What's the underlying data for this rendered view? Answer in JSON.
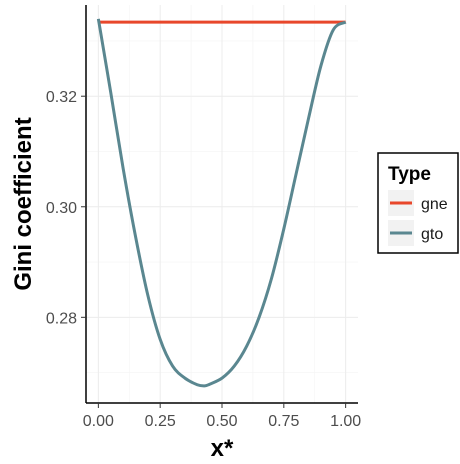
{
  "chart_data": {
    "type": "line",
    "title": "",
    "xlabel": "x*",
    "ylabel": "Gini coefficient",
    "xlim": [
      -0.05,
      1.05
    ],
    "ylim": [
      0.2645,
      0.3365
    ],
    "x_ticks": [
      0.0,
      0.25,
      0.5,
      0.75,
      1.0
    ],
    "x_tick_labels": [
      "0.00",
      "0.25",
      "0.50",
      "0.75",
      "1.00"
    ],
    "y_ticks": [
      0.28,
      0.3,
      0.32
    ],
    "y_tick_labels": [
      "0.28",
      "0.30",
      "0.32"
    ],
    "grid": true,
    "legend": {
      "title": "Type",
      "position": "right"
    },
    "series": [
      {
        "name": "gne",
        "color": "#e8472b",
        "x": [
          0.0,
          1.0
        ],
        "y": [
          0.3334,
          0.3334
        ]
      },
      {
        "name": "gto",
        "color": "#5a8790",
        "x": [
          0.0,
          0.05,
          0.1,
          0.15,
          0.2,
          0.25,
          0.3,
          0.35,
          0.4,
          0.43,
          0.45,
          0.5,
          0.55,
          0.6,
          0.65,
          0.7,
          0.75,
          0.8,
          0.85,
          0.9,
          0.95,
          1.0
        ],
        "y": [
          0.334,
          0.3207,
          0.307,
          0.2947,
          0.284,
          0.276,
          0.2712,
          0.269,
          0.2678,
          0.2676,
          0.2679,
          0.269,
          0.2712,
          0.2748,
          0.28,
          0.287,
          0.296,
          0.306,
          0.316,
          0.3255,
          0.332,
          0.3334
        ]
      }
    ]
  }
}
